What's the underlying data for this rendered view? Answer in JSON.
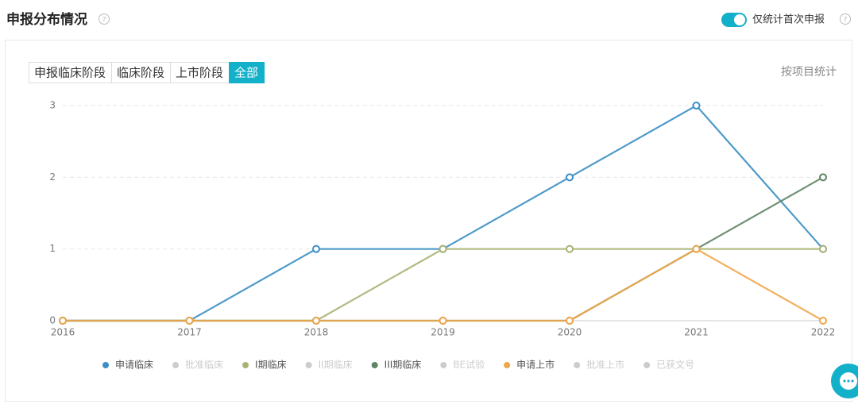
{
  "header": {
    "title": "申报分布情况",
    "toggle_label": "仅统计首次申报"
  },
  "tabs": {
    "items": [
      "申报临床阶段",
      "临床阶段",
      "上市阶段",
      "全部"
    ],
    "active": 3
  },
  "side_label": "按项目统计",
  "chart_data": {
    "type": "line",
    "categories": [
      "2016",
      "2017",
      "2018",
      "2019",
      "2020",
      "2021",
      "2022"
    ],
    "ylim": [
      0,
      3
    ],
    "yticks": [
      0,
      1,
      2,
      3
    ],
    "grid": true,
    "series": [
      {
        "name": "申请临床",
        "color": "#3b8fc4",
        "values": [
          0,
          0,
          1,
          1,
          2,
          3,
          1
        ]
      },
      {
        "name": "批准临床",
        "color": "#cccccc",
        "hidden": true
      },
      {
        "name": "I期临床",
        "color": "#aab274",
        "values": [
          0,
          0,
          0,
          1,
          1,
          1,
          1
        ]
      },
      {
        "name": "II期临床",
        "color": "#cccccc",
        "hidden": true
      },
      {
        "name": "III期临床",
        "color": "#5f8566",
        "values": [
          0,
          0,
          0,
          0,
          0,
          1,
          2
        ]
      },
      {
        "name": "BE试验",
        "color": "#cccccc",
        "hidden": true
      },
      {
        "name": "申请上市",
        "color": "#f0a64a",
        "values": [
          0,
          0,
          0,
          0,
          0,
          1,
          0
        ]
      },
      {
        "name": "批准上市",
        "color": "#cccccc",
        "hidden": true
      },
      {
        "name": "已获文号",
        "color": "#cccccc",
        "hidden": true
      }
    ]
  }
}
